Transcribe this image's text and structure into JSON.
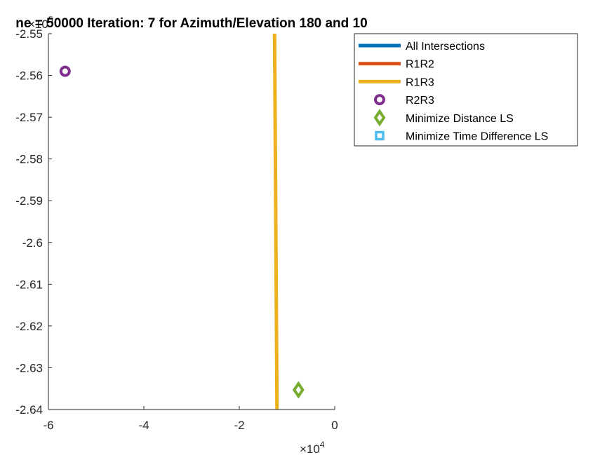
{
  "chart_data": {
    "type": "line",
    "title": "ne = 50000 Iteration: 7 for Azimuth/Elevation 180 and 10",
    "xlabel": "",
    "ylabel": "",
    "xlim": [
      -6,
      0
    ],
    "ylim": [
      -2.64,
      -2.55
    ],
    "x_exponent": {
      "base": "×10",
      "power": "4"
    },
    "y_exponent": {
      "base": "×10",
      "power": "5"
    },
    "x_ticks": [
      "-6",
      "-4",
      "-2",
      "0"
    ],
    "y_ticks": [
      "-2.55",
      "-2.56",
      "-2.57",
      "-2.58",
      "-2.59",
      "-2.6",
      "-2.61",
      "-2.62",
      "-2.63",
      "-2.64"
    ],
    "grid": false,
    "legend_position": "top-right, outside",
    "series": [
      {
        "name": "All Intersections",
        "kind": "line",
        "color": "#0072BD",
        "x": [],
        "y": []
      },
      {
        "name": "R1R2",
        "kind": "line",
        "color": "#D95319",
        "x": [],
        "y": []
      },
      {
        "name": "R1R3",
        "kind": "line",
        "color": "#EDB120",
        "x": [
          -1.26,
          -1.21
        ],
        "y": [
          -2.55,
          -2.64
        ]
      },
      {
        "name": "R2R3",
        "kind": "marker",
        "marker": "circle",
        "color": "#7E2F8E",
        "x": [
          -5.65
        ],
        "y": [
          -2.559
        ]
      },
      {
        "name": "Minimize Distance LS",
        "kind": "marker",
        "marker": "diamond",
        "color": "#77AC30",
        "x": [
          -0.76
        ],
        "y": [
          -2.6353
        ]
      },
      {
        "name": "Minimize Time Difference LS",
        "kind": "marker",
        "marker": "square",
        "color": "#4DBEEE",
        "x": [],
        "y": []
      }
    ]
  }
}
